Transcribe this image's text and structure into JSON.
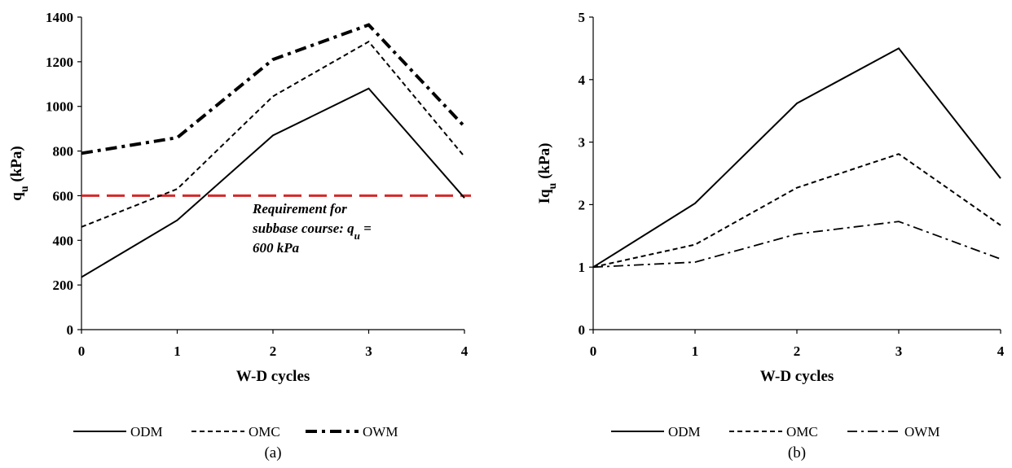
{
  "chart_data": [
    {
      "type": "line",
      "panel_label": "(a)",
      "x": [
        0,
        1,
        2,
        3,
        4
      ],
      "xlabel": "W-D cycles",
      "ylabel_main": "q",
      "ylabel_sub": "u",
      "ylabel_unit": " (kPa)",
      "xlim": [
        0,
        4
      ],
      "ylim": [
        0,
        1400
      ],
      "yticks": [
        0,
        200,
        400,
        600,
        800,
        1000,
        1200,
        1400
      ],
      "xticks": [
        0,
        1,
        2,
        3,
        4
      ],
      "grid": false,
      "legend_position": "bottom",
      "series": [
        {
          "name": "ODM",
          "values": [
            235,
            490,
            870,
            1080,
            590
          ],
          "style": "solid",
          "color": "#000000"
        },
        {
          "name": "OMC",
          "values": [
            460,
            630,
            1045,
            1290,
            775
          ],
          "style": "dashed",
          "color": "#000000"
        },
        {
          "name": "OWM",
          "values": [
            790,
            860,
            1210,
            1365,
            910
          ],
          "style": "dashdot-bold",
          "color": "#000000"
        }
      ],
      "reference_line": {
        "value": 600,
        "color": "#d62728",
        "style": "dashed"
      },
      "annotation": {
        "line1": "Requirement for",
        "line2_prefix": "subbase course: q",
        "line2_sub": "u",
        "line2_suffix": " =",
        "line3": "600 kPa"
      }
    },
    {
      "type": "line",
      "panel_label": "(b)",
      "x": [
        0,
        1,
        2,
        3,
        4
      ],
      "xlabel": "W-D cycles",
      "ylabel_main": "Iq",
      "ylabel_sub": "u",
      "ylabel_unit": " (kPa)",
      "xlim": [
        0,
        4
      ],
      "ylim": [
        0,
        5
      ],
      "yticks": [
        0,
        1,
        2,
        3,
        4,
        5
      ],
      "xticks": [
        0,
        1,
        2,
        3,
        4
      ],
      "grid": false,
      "legend_position": "bottom",
      "series": [
        {
          "name": "ODM",
          "values": [
            1.0,
            2.02,
            3.62,
            4.5,
            2.42
          ],
          "style": "solid",
          "color": "#000000"
        },
        {
          "name": "OMC",
          "values": [
            1.0,
            1.36,
            2.27,
            2.81,
            1.67
          ],
          "style": "dashed",
          "color": "#000000"
        },
        {
          "name": "OWM",
          "values": [
            1.0,
            1.08,
            1.53,
            1.73,
            1.13
          ],
          "style": "dashdot",
          "color": "#000000"
        }
      ]
    }
  ]
}
